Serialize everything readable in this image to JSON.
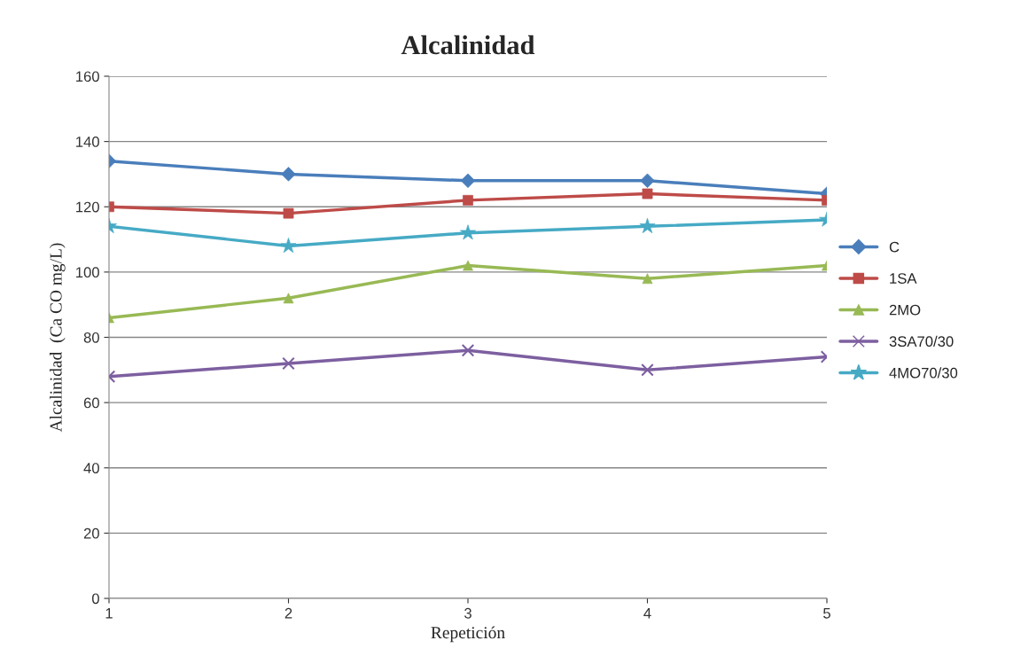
{
  "chart_data": {
    "type": "line",
    "title": "Alcalinidad",
    "xlabel": "Repetición",
    "ylabel": "Alcalinidad  (Ca CO mg/L)",
    "x": [
      1,
      2,
      3,
      4,
      5
    ],
    "xlim": [
      1,
      5
    ],
    "xticks": [
      1,
      2,
      3,
      4,
      5
    ],
    "ylim": [
      0,
      160
    ],
    "yticks": [
      0,
      20,
      40,
      60,
      80,
      100,
      120,
      140,
      160
    ],
    "grid": "y",
    "legend": "right",
    "series": [
      {
        "name": "C",
        "color": "#4a7ebb",
        "marker": "diamond",
        "values": [
          134,
          130,
          128,
          128,
          124
        ]
      },
      {
        "name": "1SA",
        "color": "#be4b48",
        "marker": "square",
        "values": [
          120,
          118,
          122,
          124,
          122
        ]
      },
      {
        "name": "2MO",
        "color": "#98b954",
        "marker": "triangle",
        "values": [
          86,
          92,
          102,
          98,
          102
        ]
      },
      {
        "name": "3SA70/30",
        "color": "#7d5fa0",
        "marker": "cross",
        "values": [
          68,
          72,
          76,
          70,
          74
        ]
      },
      {
        "name": "4MO70/30",
        "color": "#46aac5",
        "marker": "star",
        "values": [
          114,
          108,
          112,
          114,
          116
        ]
      }
    ]
  }
}
